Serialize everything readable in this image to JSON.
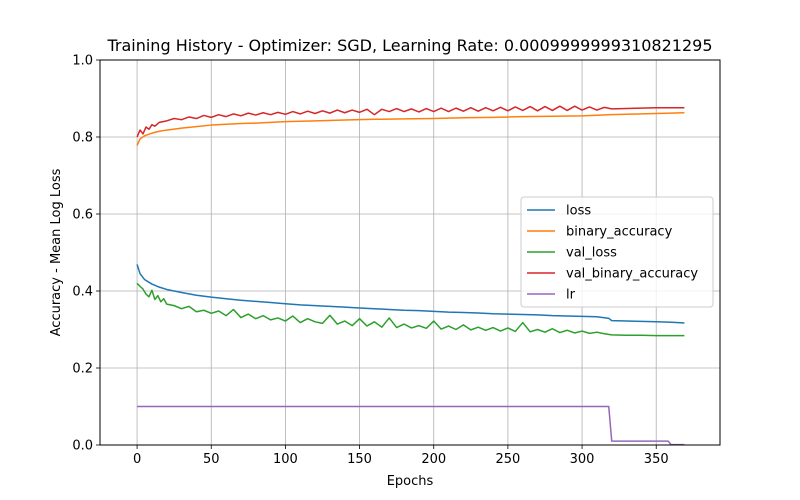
{
  "chart_data": {
    "type": "line",
    "title": "Training History - Optimizer: SGD, Learning Rate: 0.0009999999310821295",
    "xlabel": "Epochs",
    "ylabel": "Accuracy - Mean Log Loss",
    "xlim": [
      -25,
      393
    ],
    "ylim": [
      0.0,
      1.0
    ],
    "xticks": [
      0,
      50,
      100,
      150,
      200,
      250,
      300,
      350
    ],
    "yticks": [
      0.0,
      0.2,
      0.4,
      0.6,
      0.8,
      1.0
    ],
    "ytick_labels": [
      "0.0",
      "0.2",
      "0.4",
      "0.6",
      "0.8",
      "1.0"
    ],
    "grid": true,
    "legend_position": "center-right",
    "series": [
      {
        "name": "loss",
        "color": "#1f77b4",
        "x": [
          0,
          2,
          5,
          10,
          15,
          20,
          30,
          40,
          50,
          60,
          70,
          80,
          90,
          100,
          110,
          120,
          130,
          140,
          150,
          160,
          170,
          180,
          190,
          200,
          210,
          220,
          230,
          240,
          250,
          260,
          270,
          280,
          290,
          300,
          310,
          318,
          320,
          330,
          340,
          350,
          360,
          365,
          369
        ],
        "values": [
          0.469,
          0.445,
          0.43,
          0.418,
          0.41,
          0.404,
          0.396,
          0.389,
          0.384,
          0.38,
          0.376,
          0.373,
          0.37,
          0.367,
          0.364,
          0.362,
          0.36,
          0.358,
          0.356,
          0.354,
          0.352,
          0.35,
          0.349,
          0.347,
          0.345,
          0.344,
          0.343,
          0.341,
          0.34,
          0.339,
          0.338,
          0.336,
          0.335,
          0.334,
          0.333,
          0.329,
          0.323,
          0.322,
          0.321,
          0.32,
          0.319,
          0.318,
          0.317
        ]
      },
      {
        "name": "binary_accuracy",
        "color": "#ff7f0e",
        "x": [
          0,
          2,
          5,
          10,
          15,
          20,
          30,
          40,
          50,
          60,
          70,
          80,
          90,
          100,
          120,
          140,
          160,
          180,
          200,
          220,
          240,
          260,
          280,
          300,
          320,
          340,
          360,
          369
        ],
        "values": [
          0.778,
          0.795,
          0.803,
          0.81,
          0.815,
          0.818,
          0.823,
          0.827,
          0.831,
          0.833,
          0.835,
          0.836,
          0.838,
          0.84,
          0.842,
          0.844,
          0.846,
          0.847,
          0.848,
          0.85,
          0.851,
          0.853,
          0.854,
          0.855,
          0.858,
          0.86,
          0.862,
          0.863
        ]
      },
      {
        "name": "val_loss",
        "color": "#2ca02c",
        "x": [
          0,
          2,
          4,
          6,
          8,
          10,
          12,
          14,
          16,
          18,
          20,
          25,
          30,
          35,
          40,
          45,
          50,
          55,
          60,
          65,
          70,
          75,
          80,
          85,
          90,
          95,
          100,
          105,
          110,
          115,
          120,
          125,
          130,
          135,
          140,
          145,
          150,
          155,
          160,
          165,
          170,
          175,
          180,
          185,
          190,
          195,
          200,
          205,
          210,
          215,
          220,
          225,
          230,
          235,
          240,
          245,
          250,
          255,
          260,
          265,
          270,
          275,
          280,
          285,
          290,
          295,
          300,
          305,
          310,
          315,
          320,
          330,
          340,
          350,
          360,
          369
        ],
        "values": [
          0.42,
          0.412,
          0.405,
          0.392,
          0.385,
          0.402,
          0.378,
          0.388,
          0.372,
          0.38,
          0.366,
          0.362,
          0.354,
          0.36,
          0.346,
          0.35,
          0.342,
          0.348,
          0.336,
          0.352,
          0.331,
          0.34,
          0.328,
          0.336,
          0.325,
          0.33,
          0.322,
          0.335,
          0.318,
          0.328,
          0.32,
          0.316,
          0.337,
          0.314,
          0.322,
          0.31,
          0.328,
          0.309,
          0.32,
          0.306,
          0.33,
          0.305,
          0.314,
          0.304,
          0.31,
          0.303,
          0.322,
          0.301,
          0.309,
          0.3,
          0.312,
          0.299,
          0.306,
          0.298,
          0.305,
          0.296,
          0.304,
          0.295,
          0.318,
          0.294,
          0.3,
          0.293,
          0.302,
          0.292,
          0.298,
          0.291,
          0.296,
          0.29,
          0.293,
          0.289,
          0.286,
          0.285,
          0.285,
          0.284,
          0.284,
          0.284
        ]
      },
      {
        "name": "val_binary_accuracy",
        "color": "#d62728",
        "x": [
          0,
          2,
          4,
          6,
          8,
          10,
          12,
          15,
          20,
          25,
          30,
          35,
          40,
          45,
          50,
          55,
          60,
          65,
          70,
          75,
          80,
          85,
          90,
          95,
          100,
          105,
          110,
          115,
          120,
          125,
          130,
          135,
          140,
          145,
          150,
          155,
          160,
          165,
          170,
          175,
          180,
          185,
          190,
          195,
          200,
          205,
          210,
          215,
          220,
          225,
          230,
          235,
          240,
          245,
          250,
          255,
          260,
          265,
          270,
          275,
          280,
          285,
          290,
          295,
          300,
          305,
          310,
          315,
          320,
          330,
          340,
          350,
          360,
          369
        ],
        "values": [
          0.8,
          0.818,
          0.808,
          0.826,
          0.82,
          0.832,
          0.828,
          0.838,
          0.842,
          0.848,
          0.845,
          0.852,
          0.848,
          0.856,
          0.851,
          0.858,
          0.853,
          0.86,
          0.855,
          0.862,
          0.857,
          0.863,
          0.858,
          0.864,
          0.859,
          0.866,
          0.86,
          0.867,
          0.861,
          0.868,
          0.862,
          0.87,
          0.863,
          0.87,
          0.864,
          0.872,
          0.858,
          0.872,
          0.866,
          0.874,
          0.866,
          0.873,
          0.865,
          0.874,
          0.866,
          0.875,
          0.866,
          0.875,
          0.867,
          0.876,
          0.867,
          0.876,
          0.868,
          0.877,
          0.868,
          0.878,
          0.869,
          0.879,
          0.868,
          0.879,
          0.869,
          0.88,
          0.869,
          0.88,
          0.87,
          0.878,
          0.87,
          0.877,
          0.873,
          0.874,
          0.875,
          0.876,
          0.876,
          0.876
        ]
      },
      {
        "name": "lr",
        "color": "#9467bd",
        "x": [
          0,
          318,
          320,
          358,
          360,
          369
        ],
        "values": [
          0.1,
          0.1,
          0.01,
          0.01,
          0.001,
          0.001
        ]
      }
    ]
  }
}
